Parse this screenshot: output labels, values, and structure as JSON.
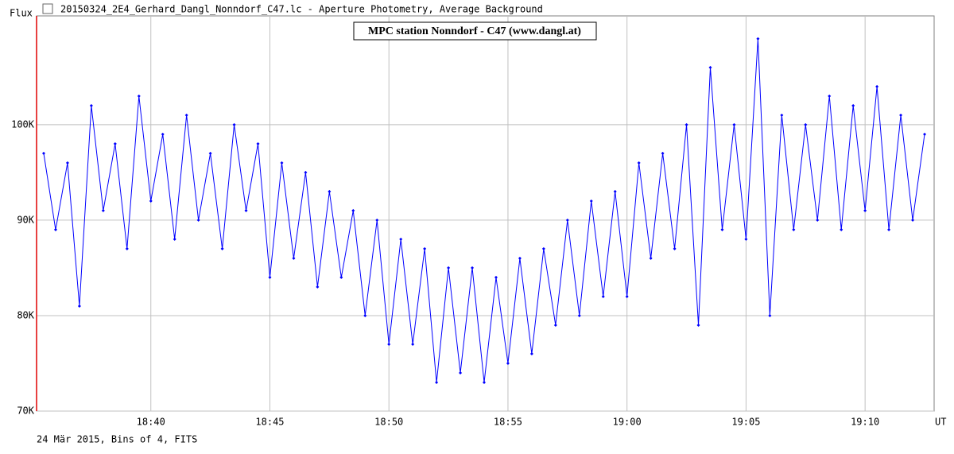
{
  "window_title": "20150324_2E4_Gerhard_Dangl_Nonndorf_C47.lc - Aperture Photometry, Average Background",
  "chart_data": {
    "type": "line",
    "title": "MPC station Nonndorf - C47 (www.dangl.at)",
    "y_label": "Flux",
    "x_label": "UT",
    "footnote": "24 Mär 2015, Bins of 4, FITS",
    "xlim": [
      1115.2,
      1152.9
    ],
    "ylim": [
      70000,
      111400
    ],
    "grid": true,
    "xticks": [
      {
        "value": 1120,
        "label": "18:40"
      },
      {
        "value": 1125,
        "label": "18:45"
      },
      {
        "value": 1130,
        "label": "18:50"
      },
      {
        "value": 1135,
        "label": "18:55"
      },
      {
        "value": 1140,
        "label": "19:00"
      },
      {
        "value": 1145,
        "label": "19:05"
      },
      {
        "value": 1150,
        "label": "19:10"
      }
    ],
    "yticks": [
      {
        "value": 70000,
        "label": "70K"
      },
      {
        "value": 80000,
        "label": "80K"
      },
      {
        "value": 90000,
        "label": "90K"
      },
      {
        "value": 100000,
        "label": "100K"
      }
    ],
    "x": [
      1115.5,
      1116,
      1116.5,
      1117,
      1117.5,
      1118,
      1118.5,
      1119,
      1119.5,
      1120,
      1120.5,
      1121,
      1121.5,
      1122,
      1122.5,
      1123,
      1123.5,
      1124,
      1124.5,
      1125,
      1125.5,
      1126,
      1126.5,
      1127,
      1127.5,
      1128,
      1128.5,
      1129,
      1129.5,
      1130,
      1130.5,
      1131,
      1131.5,
      1132,
      1132.5,
      1133,
      1133.5,
      1134,
      1134.5,
      1135,
      1135.5,
      1136,
      1136.5,
      1137,
      1137.5,
      1138,
      1138.5,
      1139,
      1139.5,
      1140,
      1140.5,
      1141,
      1141.5,
      1142,
      1142.5,
      1143,
      1143.5,
      1144,
      1144.5,
      1145,
      1145.5,
      1146,
      1146.5,
      1147,
      1147.5,
      1148,
      1148.5,
      1149,
      1149.5,
      1150,
      1150.5,
      1151,
      1151.5,
      1152,
      1152.5
    ],
    "series": [
      {
        "name": "Flux",
        "color": "#0000ff",
        "values": [
          97000,
          89000,
          96000,
          81000,
          102000,
          91000,
          98000,
          87000,
          103000,
          92000,
          99000,
          88000,
          101000,
          90000,
          97000,
          87000,
          100000,
          91000,
          98000,
          84000,
          96000,
          86000,
          95000,
          83000,
          93000,
          84000,
          91000,
          80000,
          90000,
          77000,
          88000,
          77000,
          87000,
          73000,
          85000,
          74000,
          85000,
          73000,
          84000,
          75000,
          86000,
          76000,
          87000,
          79000,
          90000,
          80000,
          92000,
          82000,
          93000,
          82000,
          96000,
          86000,
          97000,
          87000,
          100000,
          79000,
          106000,
          89000,
          100000,
          88000,
          109000,
          80000,
          101000,
          89000,
          100000,
          90000,
          103000,
          89000,
          102000,
          91000,
          104000,
          89000,
          101000,
          90000,
          99000
        ]
      }
    ]
  }
}
